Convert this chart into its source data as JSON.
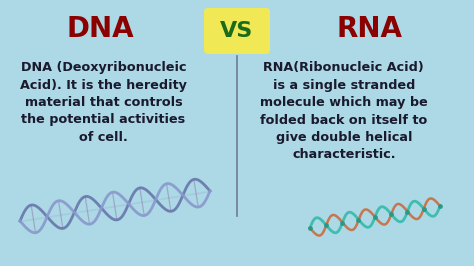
{
  "bg_color": "#add8e6",
  "title_dna": "DNA",
  "title_rna": "RNA",
  "title_vs": "VS",
  "title_color_dna_rna": "#8b0000",
  "title_color_vs": "#1a6b1a",
  "vs_box_color": "#f0e855",
  "dna_text": "DNA (Deoxyribonucleic\nAcid). It is the heredity\nmaterial that controls\nthe potential activities\nof cell.",
  "rna_text": "RNA(Ribonucleic Acid)\nis a single stranded\nmolecule which may be\nfolded back on itself to\ngive double helical\ncharacteristic.",
  "body_text_color": "#1a1a2e",
  "divider_color": "#555577",
  "title_fontsize": 20,
  "vs_fontsize": 16,
  "body_fontsize": 9.2,
  "figsize": [
    4.74,
    2.66
  ],
  "dpi": 100,
  "dna_helix_color1": "#6677aa",
  "dna_helix_color2": "#8899cc",
  "dna_rung_color": "#9999bb",
  "rna_strand1_color": "#33bbaa",
  "rna_strand2_color": "#cc6633",
  "rna_dot_color": "#229988"
}
